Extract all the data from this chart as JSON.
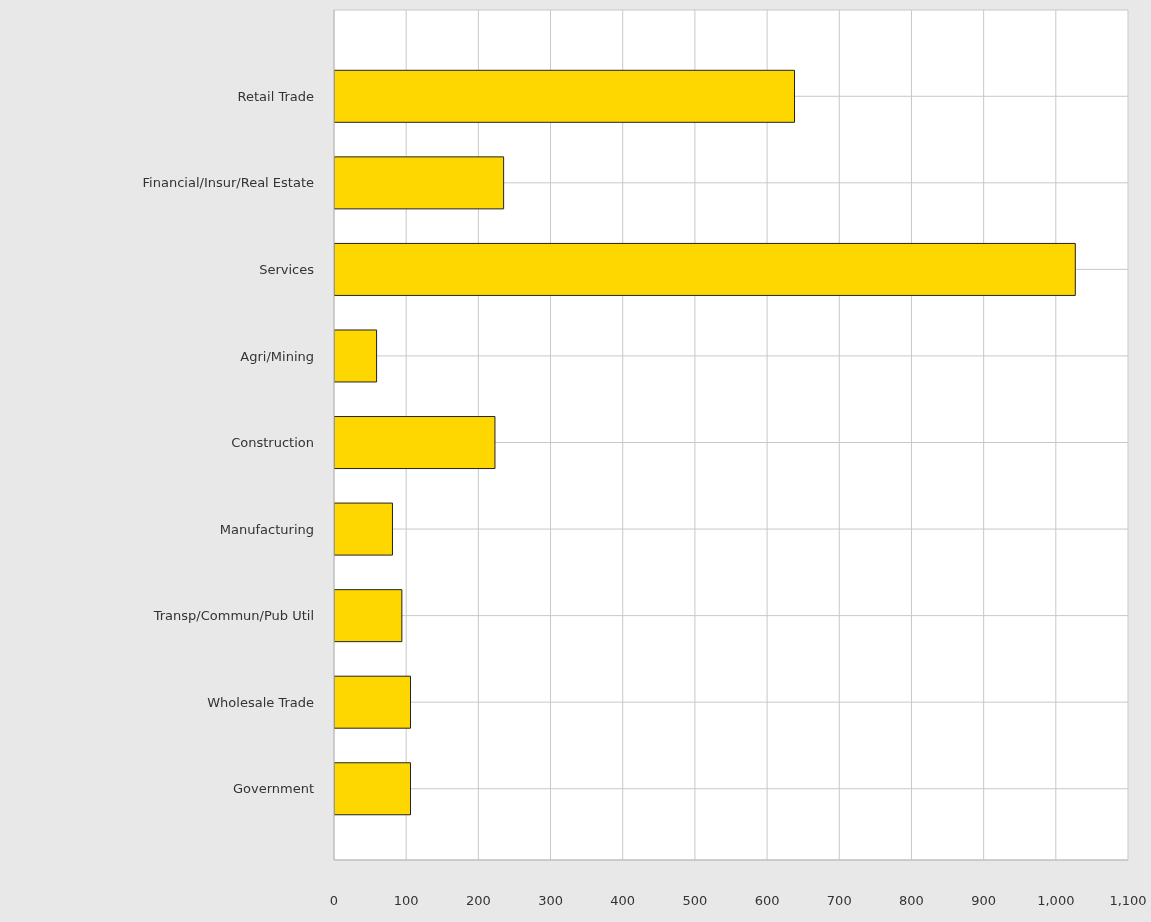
{
  "chart_data": {
    "type": "bar",
    "orientation": "horizontal",
    "categories": [
      "Retail Trade",
      "Financial/Insur/Real Estate",
      "Services",
      "Agri/Mining",
      "Construction",
      "Manufacturing",
      "Transp/Commun/Pub Util",
      "Wholesale Trade",
      "Government"
    ],
    "values": [
      638,
      235,
      1027,
      59,
      223,
      81,
      94,
      106,
      106
    ],
    "color": "#ffd700",
    "xlim": [
      0,
      1100
    ],
    "xticks": [
      0,
      100,
      200,
      300,
      400,
      500,
      600,
      700,
      800,
      900,
      {
        "value": 1000,
        "label": "1,000"
      },
      {
        "value": 1100,
        "label": "1,100"
      }
    ],
    "grid": true,
    "legend": false
  }
}
